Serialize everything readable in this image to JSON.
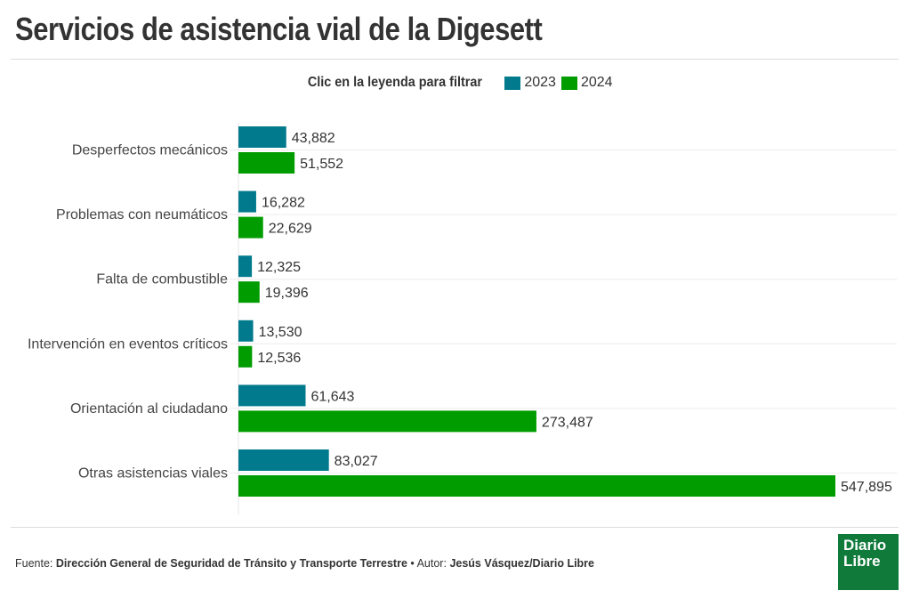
{
  "header": {
    "title": "Servicios de asistencia vial de la Digesett"
  },
  "legend": {
    "hint": "Clic en la leyenda para filtrar",
    "items": [
      {
        "label": "2023",
        "color": "#007a8c"
      },
      {
        "label": "2024",
        "color": "#009c00"
      }
    ]
  },
  "chart_data": {
    "type": "bar",
    "orientation": "horizontal",
    "title": "Servicios de asistencia vial de la Digesett",
    "categories": [
      "Desperfectos mecánicos",
      "Problemas con neumáticos",
      "Falta de combustible",
      "Intervención en eventos críticos",
      "Orientación al ciudadano",
      "Otras asistencias viales"
    ],
    "series": [
      {
        "name": "2023",
        "color": "#007a8c",
        "values": [
          43882,
          16282,
          12325,
          13530,
          61643,
          83027
        ],
        "labels": [
          "43,882",
          "16,282",
          "12,325",
          "13,530",
          "61,643",
          "83,027"
        ]
      },
      {
        "name": "2024",
        "color": "#009c00",
        "values": [
          51552,
          22629,
          19396,
          12536,
          273487,
          547895
        ],
        "labels": [
          "51,552",
          "22,629",
          "19,396",
          "12,536",
          "273,487",
          "547,895"
        ]
      }
    ],
    "xlim": [
      0,
      547895
    ],
    "grid": true,
    "legend_position": "top-center"
  },
  "footer": {
    "source_label": "Fuente:",
    "source": "Dirección General de Seguridad de Tránsito y Transporte Terrestre",
    "separator": "•",
    "author_label": "Autor:",
    "author": "Jesús Vásquez/Diario Libre"
  },
  "logo": {
    "line1": "Diario",
    "line2": "Libre"
  }
}
